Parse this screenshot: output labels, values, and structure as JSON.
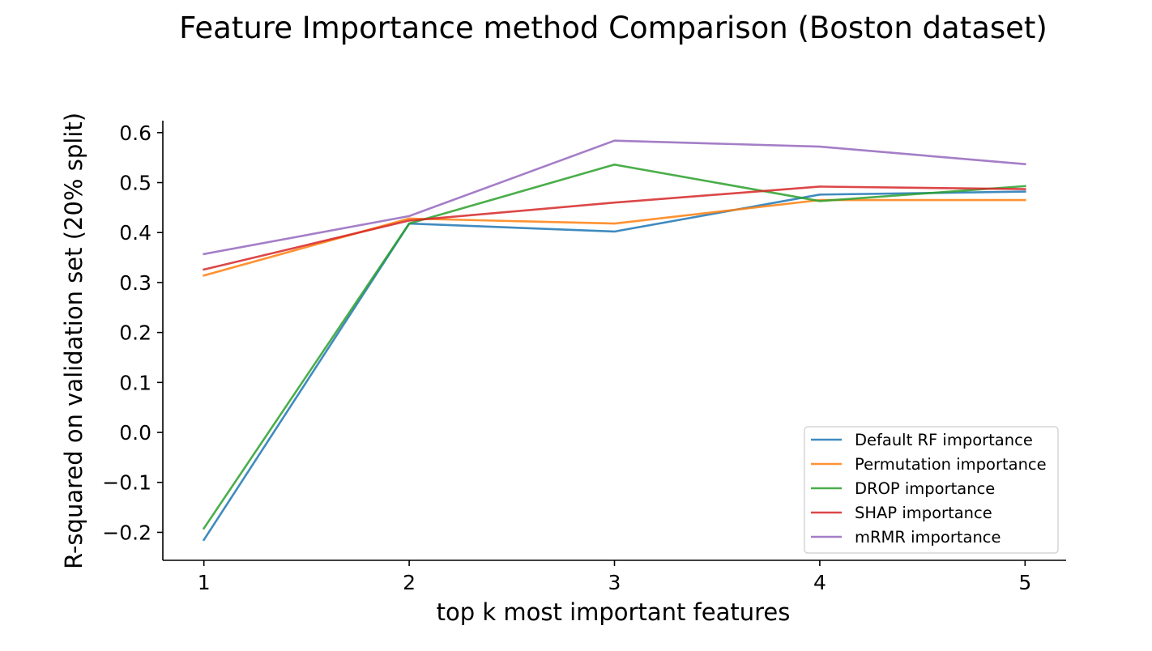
{
  "chart_data": {
    "type": "line",
    "title": "Feature Importance method Comparison (Boston dataset)",
    "xlabel": "top k most important features",
    "ylabel": "R-squared on validation set (20% split)",
    "x": [
      1,
      2,
      3,
      4,
      5
    ],
    "xticks": [
      1,
      2,
      3,
      4,
      5
    ],
    "xtick_labels": [
      "1",
      "2",
      "3",
      "4",
      "5"
    ],
    "yticks": [
      -0.2,
      -0.1,
      0.0,
      0.1,
      0.2,
      0.3,
      0.4,
      0.5,
      0.6
    ],
    "ytick_labels": [
      "−0.2",
      "−0.1",
      "0.0",
      "0.1",
      "0.2",
      "0.3",
      "0.4",
      "0.5",
      "0.6"
    ],
    "xlim": [
      0.8,
      5.2
    ],
    "ylim": [
      -0.256,
      0.624
    ],
    "grid": false,
    "legend_position": "lower-right",
    "series": [
      {
        "name": "Default RF importance",
        "color": "#1f77b4",
        "values": [
          -0.215,
          0.418,
          0.402,
          0.476,
          0.482
        ]
      },
      {
        "name": "Permutation importance",
        "color": "#ff7f0e",
        "values": [
          0.314,
          0.428,
          0.418,
          0.465,
          0.465
        ]
      },
      {
        "name": "DROP importance",
        "color": "#2ca02c",
        "values": [
          -0.192,
          0.418,
          0.536,
          0.463,
          0.493
        ]
      },
      {
        "name": "SHAP importance",
        "color": "#d62728",
        "values": [
          0.326,
          0.424,
          0.46,
          0.492,
          0.487
        ]
      },
      {
        "name": "mRMR importance",
        "color": "#9467bd",
        "values": [
          0.357,
          0.433,
          0.584,
          0.572,
          0.537
        ]
      }
    ]
  }
}
